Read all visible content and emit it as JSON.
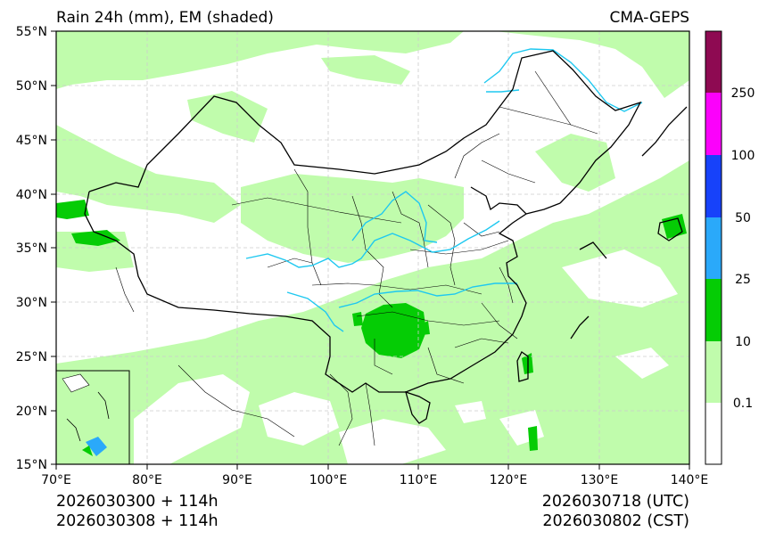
{
  "title_left": "Rain 24h (mm), EM (shaded)",
  "title_right": "CMA-GEPS",
  "y_ticks": [
    "55°N",
    "50°N",
    "45°N",
    "40°N",
    "35°N",
    "30°N",
    "25°N",
    "20°N",
    "15°N"
  ],
  "x_ticks": [
    "70°E",
    "80°E",
    "90°E",
    "100°E",
    "110°E",
    "120°E",
    "130°E",
    "140°E"
  ],
  "colorbar": {
    "labels": [
      "0.1",
      "10",
      "25",
      "50",
      "100",
      "250"
    ],
    "colors": [
      "#ffffff",
      "#c0fcac",
      "#05cc05",
      "#2aa9fa",
      "#1742fa",
      "#fb01fb",
      "#8e0a52"
    ]
  },
  "footer": {
    "init_utc": "2026030300 + 114h",
    "init_cst": "2026030308 + 114h",
    "valid_utc": "2026030718 (UTC)",
    "valid_cst": "2026030802 (CST)"
  },
  "colors": {
    "light_rain": "#c0fcac",
    "moderate_rain": "#05cc05",
    "heavy_rain": "#2aa9fa",
    "rivers": "#1ec8f0",
    "borders": "#000000"
  }
}
